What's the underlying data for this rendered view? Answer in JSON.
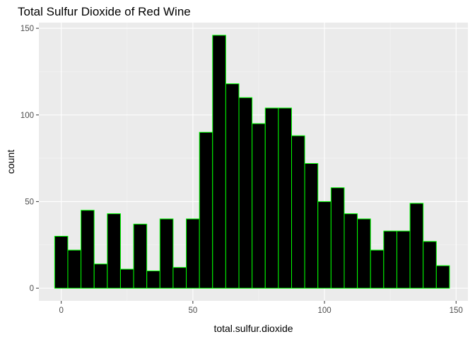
{
  "chart_data": {
    "type": "bar",
    "subtype": "histogram",
    "title": "Total Sulfur Dioxide of Red Wine",
    "xlabel": "total.sulfur.dioxide",
    "ylabel": "count",
    "bin_width": 5,
    "bins": [
      {
        "start": -2.5,
        "end": 2.5,
        "count": 30
      },
      {
        "start": 2.5,
        "end": 7.5,
        "count": 22
      },
      {
        "start": 7.5,
        "end": 12.5,
        "count": 45
      },
      {
        "start": 12.5,
        "end": 17.5,
        "count": 14
      },
      {
        "start": 17.5,
        "end": 22.5,
        "count": 43
      },
      {
        "start": 22.5,
        "end": 27.5,
        "count": 11
      },
      {
        "start": 27.5,
        "end": 32.5,
        "count": 37
      },
      {
        "start": 32.5,
        "end": 37.5,
        "count": 10
      },
      {
        "start": 37.5,
        "end": 42.5,
        "count": 40
      },
      {
        "start": 42.5,
        "end": 47.5,
        "count": 12
      },
      {
        "start": 47.5,
        "end": 52.5,
        "count": 40
      },
      {
        "start": 52.5,
        "end": 57.5,
        "count": 90
      },
      {
        "start": 57.5,
        "end": 62.5,
        "count": 146
      },
      {
        "start": 62.5,
        "end": 67.5,
        "count": 118
      },
      {
        "start": 67.5,
        "end": 72.5,
        "count": 110
      },
      {
        "start": 72.5,
        "end": 77.5,
        "count": 95
      },
      {
        "start": 77.5,
        "end": 82.5,
        "count": 104
      },
      {
        "start": 82.5,
        "end": 87.5,
        "count": 104
      },
      {
        "start": 87.5,
        "end": 92.5,
        "count": 88
      },
      {
        "start": 92.5,
        "end": 97.5,
        "count": 72
      },
      {
        "start": 97.5,
        "end": 102.5,
        "count": 50
      },
      {
        "start": 102.5,
        "end": 107.5,
        "count": 58
      },
      {
        "start": 107.5,
        "end": 112.5,
        "count": 43
      },
      {
        "start": 112.5,
        "end": 117.5,
        "count": 40
      },
      {
        "start": 117.5,
        "end": 122.5,
        "count": 22
      },
      {
        "start": 122.5,
        "end": 127.5,
        "count": 33
      },
      {
        "start": 127.5,
        "end": 132.5,
        "count": 33
      },
      {
        "start": 132.5,
        "end": 137.5,
        "count": 49
      },
      {
        "start": 137.5,
        "end": 142.5,
        "count": 27
      },
      {
        "start": 142.5,
        "end": 147.5,
        "count": 13
      }
    ],
    "xlim": [
      -8.5,
      154.5
    ],
    "ylim": [
      -7.3,
      153.3
    ],
    "x_ticks": [
      0,
      50,
      100,
      150
    ],
    "x_tick_labels": [
      "0",
      "50",
      "100",
      "150"
    ],
    "y_ticks": [
      0,
      50,
      100,
      150
    ],
    "y_tick_labels": [
      "0",
      "50",
      "100",
      "150"
    ],
    "grid": true,
    "legend": "none",
    "colors": {
      "bar_fill": "#000000",
      "bar_outline": "#00ff00",
      "panel_background": "#ebebeb",
      "grid_major": "#ffffff",
      "grid_minor": "#f5f5f5",
      "tick_mark": "#333333",
      "tick_label": "#4d4d4d"
    }
  }
}
